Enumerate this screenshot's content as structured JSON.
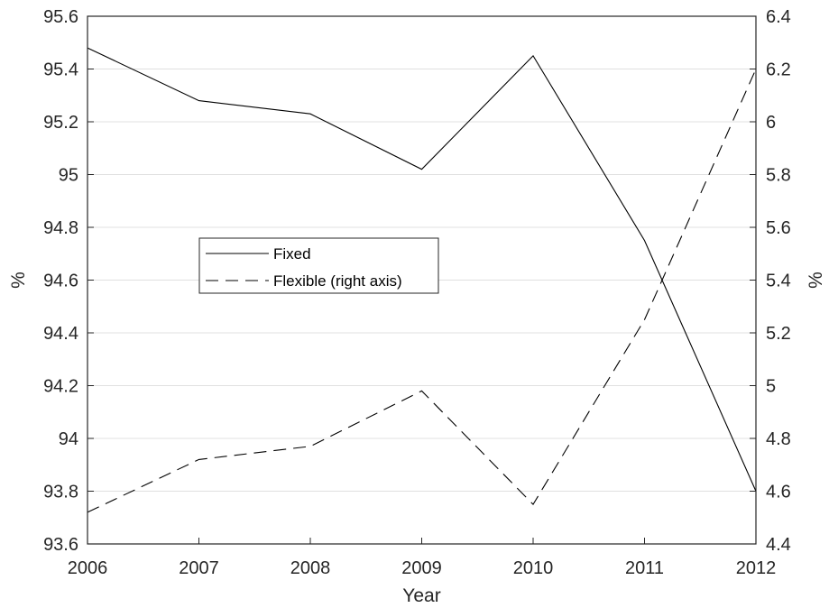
{
  "chart_data": {
    "type": "line",
    "title": "",
    "xlabel": "Year",
    "ylabel_left": "%",
    "ylabel_right": "%",
    "x": [
      2006,
      2007,
      2008,
      2009,
      2010,
      2011,
      2012
    ],
    "xlim": [
      2006,
      2012
    ],
    "ylim_left": [
      93.6,
      95.6
    ],
    "ylim_right": [
      4.4,
      6.4
    ],
    "yticks_left": [
      "93.6",
      "93.8",
      "94",
      "94.2",
      "94.4",
      "94.6",
      "94.8",
      "95",
      "95.2",
      "95.4",
      "95.6"
    ],
    "yticks_right": [
      "4.4",
      "4.6",
      "4.8",
      "5",
      "5.2",
      "5.4",
      "5.6",
      "5.8",
      "6",
      "6.2",
      "6.4"
    ],
    "xticks": [
      "2006",
      "2007",
      "2008",
      "2009",
      "2010",
      "2011",
      "2012"
    ],
    "grid": "horizontal",
    "legend_position": "center-left",
    "series": [
      {
        "name": "Fixed",
        "axis": "left",
        "style": "solid",
        "color": "#000000",
        "values": [
          95.48,
          95.28,
          95.23,
          95.02,
          95.45,
          94.75,
          93.8
        ]
      },
      {
        "name": "Flexible (right axis)",
        "axis": "right",
        "style": "dashed",
        "color": "#000000",
        "values": [
          4.52,
          4.72,
          4.77,
          4.98,
          4.55,
          5.25,
          6.2
        ]
      }
    ]
  }
}
